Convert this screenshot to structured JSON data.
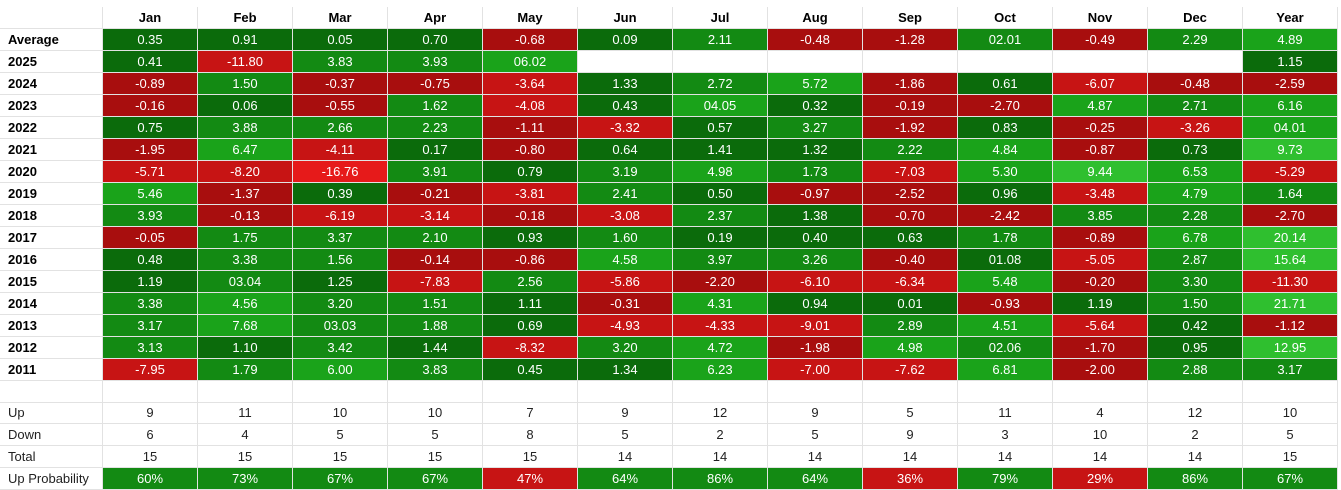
{
  "chart_data": {
    "type": "table",
    "columns": [
      "Jan",
      "Feb",
      "Mar",
      "Apr",
      "May",
      "Jun",
      "Jul",
      "Aug",
      "Sep",
      "Oct",
      "Nov",
      "Dec",
      "Year"
    ],
    "rows": [
      {
        "label": "Average",
        "values": [
          "0.35",
          "0.91",
          "0.05",
          "0.70",
          "-0.68",
          "0.09",
          "2.11",
          "-0.48",
          "-1.28",
          "02.01",
          "-0.49",
          "2.29",
          "4.89"
        ]
      },
      {
        "label": "2025",
        "values": [
          "0.41",
          "-11.80",
          "3.83",
          "3.93",
          "06.02",
          "",
          "",
          "",
          "",
          "",
          "",
          "",
          "1.15"
        ]
      },
      {
        "label": "2024",
        "values": [
          "-0.89",
          "1.50",
          "-0.37",
          "-0.75",
          "-3.64",
          "1.33",
          "2.72",
          "5.72",
          "-1.86",
          "0.61",
          "-6.07",
          "-0.48",
          "-2.59"
        ]
      },
      {
        "label": "2023",
        "values": [
          "-0.16",
          "0.06",
          "-0.55",
          "1.62",
          "-4.08",
          "0.43",
          "04.05",
          "0.32",
          "-0.19",
          "-2.70",
          "4.87",
          "2.71",
          "6.16"
        ]
      },
      {
        "label": "2022",
        "values": [
          "0.75",
          "3.88",
          "2.66",
          "2.23",
          "-1.11",
          "-3.32",
          "0.57",
          "3.27",
          "-1.92",
          "0.83",
          "-0.25",
          "-3.26",
          "04.01"
        ]
      },
      {
        "label": "2021",
        "values": [
          "-1.95",
          "6.47",
          "-4.11",
          "0.17",
          "-0.80",
          "0.64",
          "1.41",
          "1.32",
          "2.22",
          "4.84",
          "-0.87",
          "0.73",
          "9.73"
        ]
      },
      {
        "label": "2020",
        "values": [
          "-5.71",
          "-8.20",
          "-16.76",
          "3.91",
          "0.79",
          "3.19",
          "4.98",
          "1.73",
          "-7.03",
          "5.30",
          "9.44",
          "6.53",
          "-5.29"
        ]
      },
      {
        "label": "2019",
        "values": [
          "5.46",
          "-1.37",
          "0.39",
          "-0.21",
          "-3.81",
          "2.41",
          "0.50",
          "-0.97",
          "-2.52",
          "0.96",
          "-3.48",
          "4.79",
          "1.64"
        ]
      },
      {
        "label": "2018",
        "values": [
          "3.93",
          "-0.13",
          "-6.19",
          "-3.14",
          "-0.18",
          "-3.08",
          "2.37",
          "1.38",
          "-0.70",
          "-2.42",
          "3.85",
          "2.28",
          "-2.70"
        ]
      },
      {
        "label": "2017",
        "values": [
          "-0.05",
          "1.75",
          "3.37",
          "2.10",
          "0.93",
          "1.60",
          "0.19",
          "0.40",
          "0.63",
          "1.78",
          "-0.89",
          "6.78",
          "20.14"
        ]
      },
      {
        "label": "2016",
        "values": [
          "0.48",
          "3.38",
          "1.56",
          "-0.14",
          "-0.86",
          "4.58",
          "3.97",
          "3.26",
          "-0.40",
          "01.08",
          "-5.05",
          "2.87",
          "15.64"
        ]
      },
      {
        "label": "2015",
        "values": [
          "1.19",
          "03.04",
          "1.25",
          "-7.83",
          "2.56",
          "-5.86",
          "-2.20",
          "-6.10",
          "-6.34",
          "5.48",
          "-0.20",
          "3.30",
          "-11.30"
        ]
      },
      {
        "label": "2014",
        "values": [
          "3.38",
          "4.56",
          "3.20",
          "1.51",
          "1.11",
          "-0.31",
          "4.31",
          "0.94",
          "0.01",
          "-0.93",
          "1.19",
          "1.50",
          "21.71"
        ]
      },
      {
        "label": "2013",
        "values": [
          "3.17",
          "7.68",
          "03.03",
          "1.88",
          "0.69",
          "-4.93",
          "-4.33",
          "-9.01",
          "2.89",
          "4.51",
          "-5.64",
          "0.42",
          "-1.12"
        ]
      },
      {
        "label": "2012",
        "values": [
          "3.13",
          "1.10",
          "3.42",
          "1.44",
          "-8.32",
          "3.20",
          "4.72",
          "-1.98",
          "4.98",
          "02.06",
          "-1.70",
          "0.95",
          "12.95"
        ]
      },
      {
        "label": "2011",
        "values": [
          "-7.95",
          "1.79",
          "6.00",
          "3.83",
          "0.45",
          "1.34",
          "6.23",
          "-7.00",
          "-7.62",
          "6.81",
          "-2.00",
          "2.88",
          "3.17"
        ]
      }
    ],
    "summary": [
      {
        "label": "Up",
        "values": [
          "9",
          "11",
          "10",
          "10",
          "7",
          "9",
          "12",
          "9",
          "5",
          "11",
          "4",
          "12",
          "10"
        ]
      },
      {
        "label": "Down",
        "values": [
          "6",
          "4",
          "5",
          "5",
          "8",
          "5",
          "2",
          "5",
          "9",
          "3",
          "10",
          "2",
          "5"
        ]
      },
      {
        "label": "Total",
        "values": [
          "15",
          "15",
          "15",
          "15",
          "15",
          "14",
          "14",
          "14",
          "14",
          "14",
          "14",
          "14",
          "15"
        ]
      },
      {
        "label": "Up Probability",
        "values": [
          "60%",
          "73%",
          "67%",
          "67%",
          "47%",
          "64%",
          "86%",
          "64%",
          "36%",
          "79%",
          "29%",
          "86%",
          "67%"
        ]
      }
    ],
    "colors": {
      "positive_dark": "#0b6b0b",
      "positive_mid": "#138a13",
      "positive_bright": "#1aa31a",
      "positive_light": "#2fbf2f",
      "negative_dark": "#a80e0e",
      "negative_mid": "#c71414",
      "negative_bright": "#e61a1a",
      "neutral_blank": "#ffffff"
    }
  }
}
